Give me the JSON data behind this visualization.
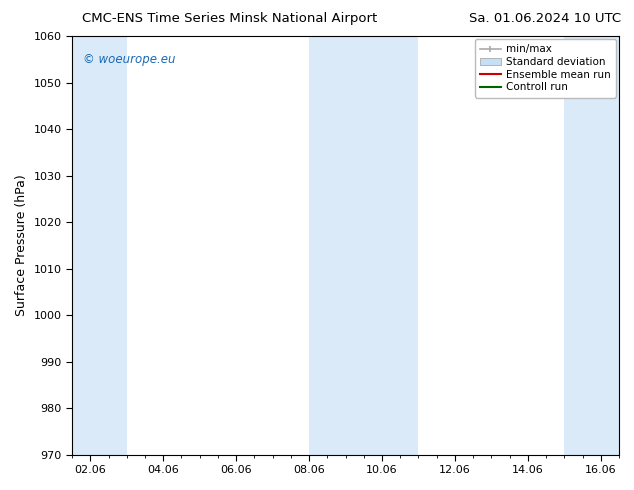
{
  "title_left": "CMC-ENS Time Series Minsk National Airport",
  "title_right": "Sa. 01.06.2024 10 UTC",
  "ylabel": "Surface Pressure (hPa)",
  "ylim": [
    970,
    1060
  ],
  "yticks": [
    970,
    980,
    990,
    1000,
    1010,
    1020,
    1030,
    1040,
    1050,
    1060
  ],
  "xlim_start": 0.0,
  "xlim_end": 15.0,
  "xtick_labels": [
    "02.06",
    "04.06",
    "06.06",
    "08.06",
    "10.06",
    "12.06",
    "14.06",
    "16.06"
  ],
  "xtick_positions": [
    0.5,
    2.5,
    4.5,
    6.5,
    8.5,
    10.5,
    12.5,
    14.5
  ],
  "watermark": "© woeurope.eu",
  "watermark_color": "#1a6ab5",
  "bg_color": "#ffffff",
  "plot_bg_color": "#ffffff",
  "legend_labels": [
    "min/max",
    "Standard deviation",
    "Ensemble mean run",
    "Controll run"
  ],
  "shaded_band_color": "#daeaf8",
  "shaded_bands": [
    {
      "x_start": 0.0,
      "x_end": 1.5
    },
    {
      "x_start": 6.5,
      "x_end": 7.5
    },
    {
      "x_start": 7.5,
      "x_end": 9.5
    },
    {
      "x_start": 13.5,
      "x_end": 15.0
    }
  ],
  "title_fontsize": 9.5,
  "ylabel_fontsize": 9,
  "tick_fontsize": 8,
  "legend_fontsize": 7.5,
  "watermark_fontsize": 8.5
}
